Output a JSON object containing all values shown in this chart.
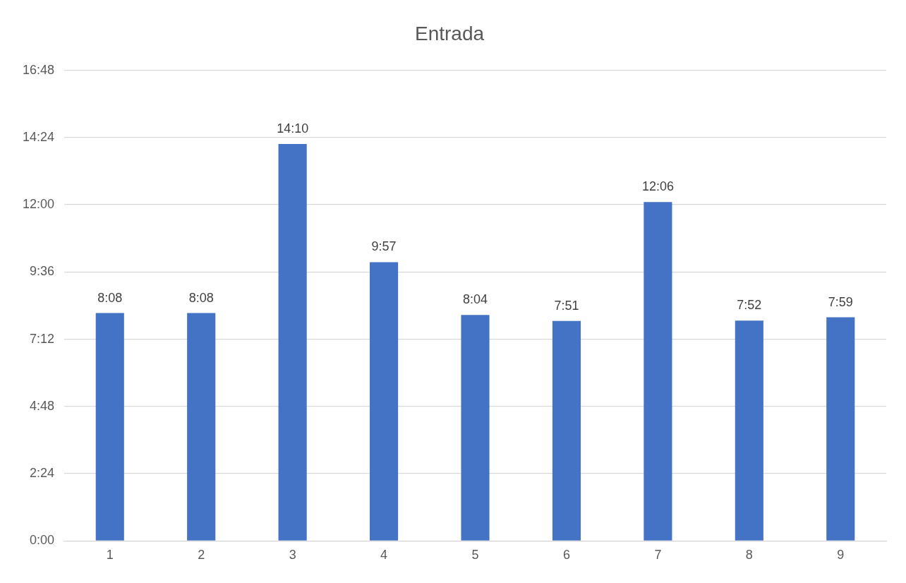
{
  "chart_data": {
    "type": "bar",
    "title": "Entrada",
    "categories": [
      "1",
      "2",
      "3",
      "4",
      "5",
      "6",
      "7",
      "8",
      "9"
    ],
    "values": [
      8.1333,
      8.1333,
      14.1667,
      9.95,
      8.0667,
      7.85,
      12.1,
      7.8667,
      7.9833
    ],
    "value_labels": [
      "8:08",
      "8:08",
      "14:10",
      "9:57",
      "8:04",
      "7:51",
      "12:06",
      "7:52",
      "7:59"
    ],
    "color": "#4472c4",
    "ylim": [
      0,
      16.8
    ],
    "yticks": [
      {
        "value": 0,
        "label": "0:00"
      },
      {
        "value": 2.4,
        "label": "2:24"
      },
      {
        "value": 4.8,
        "label": "4:48"
      },
      {
        "value": 7.2,
        "label": "7:12"
      },
      {
        "value": 9.6,
        "label": "9:36"
      },
      {
        "value": 12,
        "label": "12:00"
      },
      {
        "value": 14.4,
        "label": "14:24"
      },
      {
        "value": 16.8,
        "label": "16:48"
      }
    ],
    "grid": "y"
  }
}
